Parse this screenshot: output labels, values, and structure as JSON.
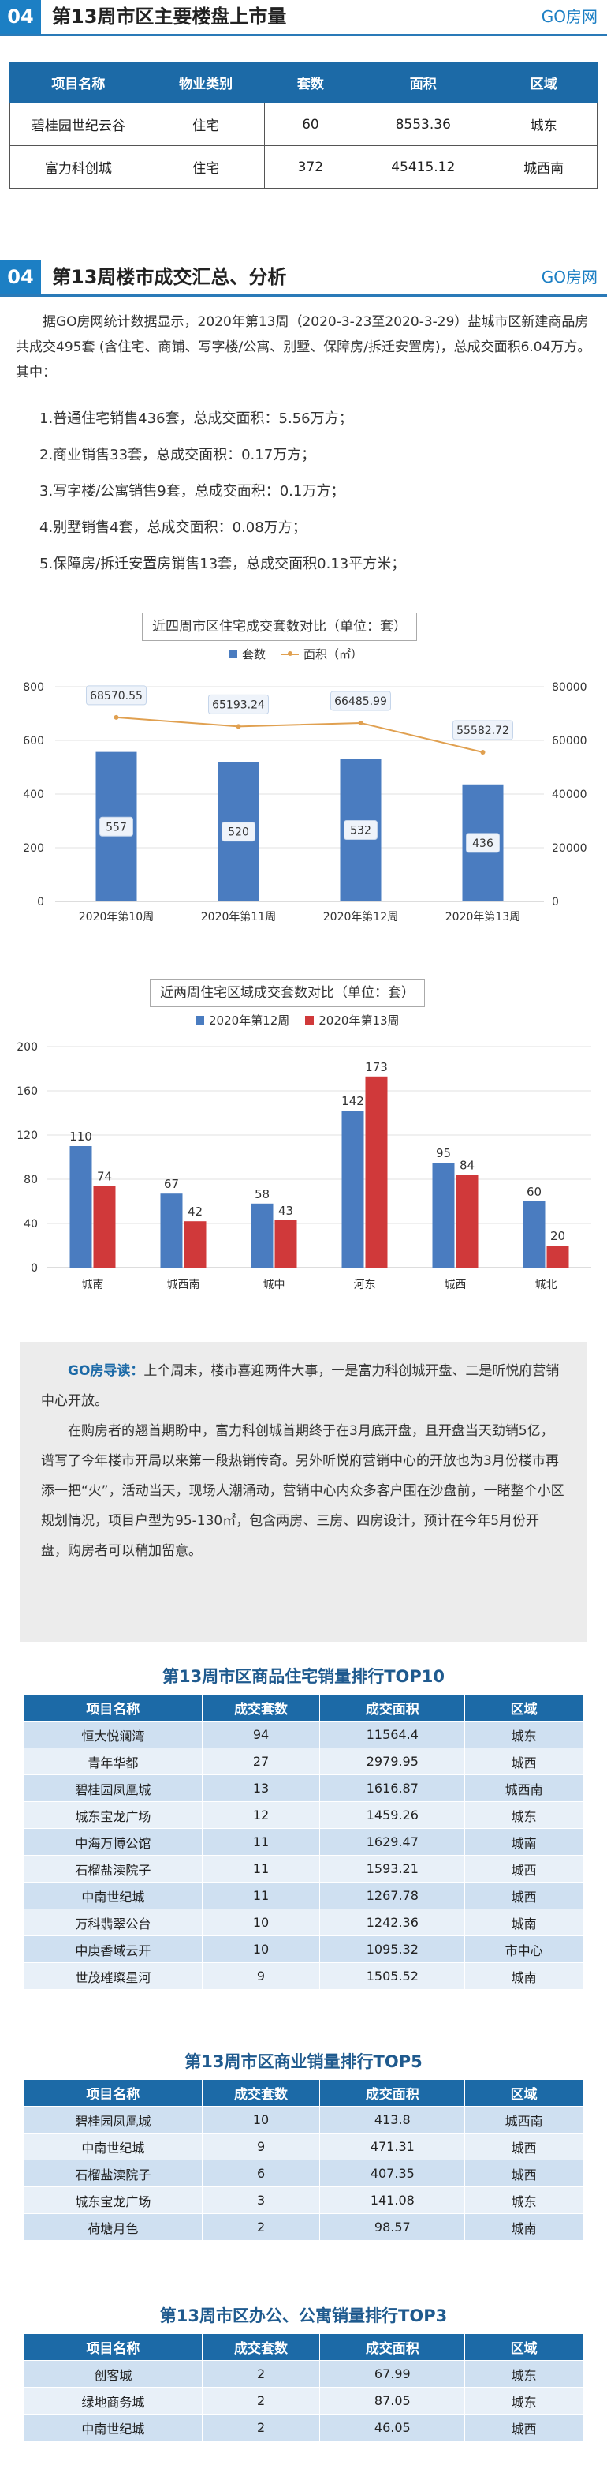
{
  "section1": {
    "num": "04",
    "title": "第13周市区主要楼盘上市量",
    "brand": "GO房网"
  },
  "table1": {
    "headers": [
      "项目名称",
      "物业类别",
      "套数",
      "面积",
      "区域"
    ],
    "rows": [
      [
        "碧桂园世纪云谷",
        "住宅",
        "60",
        "8553.36",
        "城东"
      ],
      [
        "富力科创城",
        "住宅",
        "372",
        "45415.12",
        "城西南"
      ]
    ]
  },
  "section2": {
    "num": "04",
    "title": "第13周楼市成交汇总、分析",
    "brand": "GO房网"
  },
  "summary": {
    "paragraph": "据GO房网统计数据显示，2020年第13周（2020-3-23至2020-3-29）盐城市区新建商品房共成交495套 (含住宅、商铺、写字楼/公寓、别墅、保障房/拆迁安置房)，总成交面积6.04万方。其中：",
    "items": [
      "1.普通住宅销售436套，总成交面积：5.56万方；",
      "2.商业销售33套，总成交面积：0.17万方；",
      "3.写字楼/公寓销售9套，总成交面积：0.1万方；",
      "4.别墅销售4套，总成交面积：0.08万方；",
      "5.保障房/拆迁安置房销售13套，总成交面积0.13平方米；"
    ]
  },
  "chart_data": [
    {
      "type": "bar",
      "title": "近四周市区住宅成交套数对比（单位：套）",
      "categories": [
        "2020年第10周",
        "2020年第11周",
        "2020年第12周",
        "2020年第13周"
      ],
      "series": [
        {
          "name": "套数",
          "kind": "bar",
          "axis": "left",
          "values": [
            557,
            520,
            532,
            436
          ],
          "color": "#4a7cc0"
        },
        {
          "name": "面积（㎡）",
          "kind": "line",
          "axis": "right",
          "values": [
            68570.55,
            65193.24,
            66485.99,
            55582.72
          ],
          "color": "#e0a050"
        }
      ],
      "ylim": [
        0,
        800
      ],
      "yticks": [
        0,
        200,
        400,
        600,
        800
      ],
      "y2lim": [
        0,
        80000
      ],
      "y2ticks": [
        0,
        20000,
        40000,
        60000,
        80000
      ],
      "legend": "top"
    },
    {
      "type": "bar",
      "title": "近两周住宅区域成交套数对比（单位：套）",
      "categories": [
        "城南",
        "城西南",
        "城中",
        "河东",
        "城西",
        "城北"
      ],
      "series": [
        {
          "name": "2020年第12周",
          "values": [
            110,
            67,
            58,
            142,
            95,
            60
          ],
          "color": "#4a7cc0"
        },
        {
          "name": "2020年第13周",
          "values": [
            74,
            42,
            43,
            173,
            84,
            20
          ],
          "color": "#d0393a"
        }
      ],
      "ylim": [
        0,
        200
      ],
      "yticks": [
        0,
        40,
        80,
        120,
        160,
        200
      ],
      "legend": "top"
    }
  ],
  "guide": {
    "lead": "GO房导读：",
    "p1": "上个周末，楼市喜迎两件大事，一是富力科创城开盘、二是昕悦府营销中心开放。",
    "p2": "在购房者的翘首期盼中，富力科创城首期终于在3月底开盘，且开盘当天劲销5亿，谱写了今年楼市开局以来第一段热销传奇。另外昕悦府营销中心的开放也为3月份楼市再添一把“火”，活动当天，现场人潮涌动，营销中心内众多客户围在沙盘前，一睹整个小区规划情况，项目户型为95-130㎡，包含两房、三房、四房设计，预计在今年5月份开盘，购房者可以稍加留意。"
  },
  "rank1": {
    "title": "第13周市区商品住宅销量排行TOP10",
    "headers": [
      "项目名称",
      "成交套数",
      "成交面积",
      "区域"
    ],
    "rows": [
      [
        "恒大悦澜湾",
        "94",
        "11564.4",
        "城东"
      ],
      [
        "青年华都",
        "27",
        "2979.95",
        "城西"
      ],
      [
        "碧桂园凤凰城",
        "13",
        "1616.87",
        "城西南"
      ],
      [
        "城东宝龙广场",
        "12",
        "1459.26",
        "城东"
      ],
      [
        "中海万博公馆",
        "11",
        "1629.47",
        "城南"
      ],
      [
        "石榴盐渎院子",
        "11",
        "1593.21",
        "城西"
      ],
      [
        "中南世纪城",
        "11",
        "1267.78",
        "城西"
      ],
      [
        "万科翡翠公台",
        "10",
        "1242.36",
        "城南"
      ],
      [
        "中庚香域云开",
        "10",
        "1095.32",
        "市中心"
      ],
      [
        "世茂璀璨星河",
        "9",
        "1505.52",
        "城南"
      ]
    ]
  },
  "rank2": {
    "title": "第13周市区商业销量排行TOP5",
    "headers": [
      "项目名称",
      "成交套数",
      "成交面积",
      "区域"
    ],
    "rows": [
      [
        "碧桂园凤凰城",
        "10",
        "413.8",
        "城西南"
      ],
      [
        "中南世纪城",
        "9",
        "471.31",
        "城西"
      ],
      [
        "石榴盐渎院子",
        "6",
        "407.35",
        "城西"
      ],
      [
        "城东宝龙广场",
        "3",
        "141.08",
        "城东"
      ],
      [
        "荷塘月色",
        "2",
        "98.57",
        "城南"
      ]
    ]
  },
  "rank3": {
    "title": "第13周市区办公、公寓销量排行TOP3",
    "headers": [
      "项目名称",
      "成交套数",
      "成交面积",
      "区域"
    ],
    "rows": [
      [
        "创客城",
        "2",
        "67.99",
        "城东"
      ],
      [
        "绿地商务城",
        "2",
        "87.05",
        "城东"
      ],
      [
        "中南世纪城",
        "2",
        "46.05",
        "城西"
      ]
    ]
  }
}
